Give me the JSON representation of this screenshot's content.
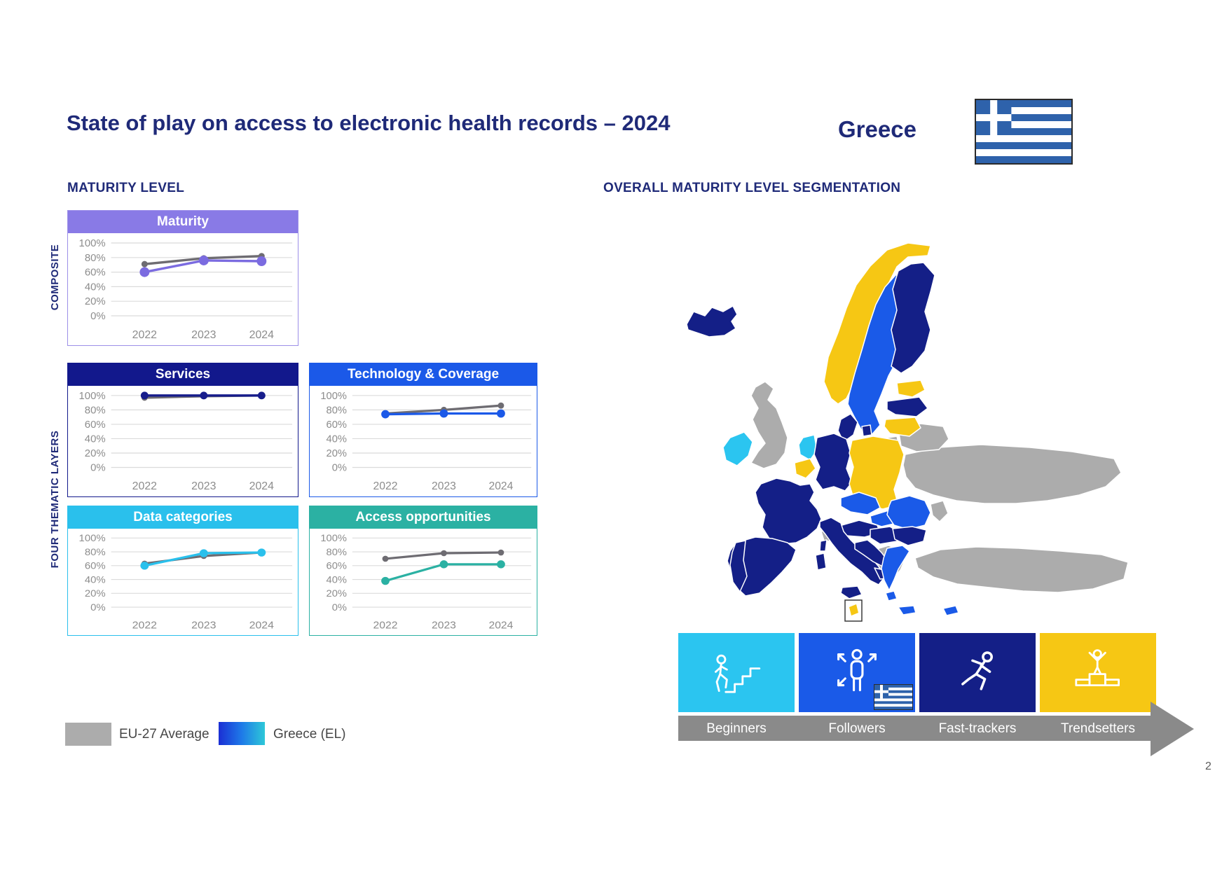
{
  "page": {
    "title": "State of play on access to electronic health records – 2024",
    "country_label": "Greece",
    "page_number": "2"
  },
  "left": {
    "heading": "MATURITY LEVEL",
    "row_labels": {
      "composite": "COMPOSITE",
      "thematic": "FOUR THEMATIC LAYERS"
    },
    "legend": [
      {
        "label": "EU-27 Average",
        "color": "#ACACAC"
      },
      {
        "label": "Greece (EL)",
        "color": "linear-gradient(90deg,#1B2FD4,#1E7AE8,#2EC8D8)"
      }
    ]
  },
  "right": {
    "heading": "OVERALL MATURITY LEVEL SEGMENTATION",
    "segments": [
      {
        "label": "Beginners",
        "color": "#2BC5F0",
        "icon": "person-climbing-stairs-icon"
      },
      {
        "label": "Followers",
        "color": "#1A5AE8",
        "icon": "person-expand-arrows-icon",
        "flag": "greece"
      },
      {
        "label": "Fast-trackers",
        "color": "#141F87",
        "icon": "running-person-icon"
      },
      {
        "label": "Trendsetters",
        "color": "#F6C714",
        "icon": "podium-winner-icon"
      }
    ]
  },
  "chart_data": [
    {
      "type": "line",
      "title": "Maturity",
      "header_color": "#897AE6",
      "border_color": "#9C8FE8",
      "x": [
        "2022",
        "2023",
        "2024"
      ],
      "ylim": [
        0,
        100
      ],
      "yticks": [
        "100%",
        "80%",
        "60%",
        "40%",
        "20%",
        "0%"
      ],
      "series": [
        {
          "name": "EU-27 Average",
          "color": "#6E6C72",
          "marker_r": 4.5,
          "values": [
            71,
            79,
            82
          ]
        },
        {
          "name": "Greece (EL)",
          "color": "#7B6BE0",
          "marker_r": 7,
          "values": [
            60,
            76,
            75
          ]
        }
      ]
    },
    {
      "type": "line",
      "title": "Services",
      "header_color": "#12188C",
      "border_color": "#12188C",
      "x": [
        "2022",
        "2023",
        "2024"
      ],
      "ylim": [
        0,
        100
      ],
      "yticks": [
        "100%",
        "80%",
        "60%",
        "40%",
        "20%",
        "0%"
      ],
      "series": [
        {
          "name": "EU-27 Average",
          "color": "#6E6C72",
          "marker_r": 4.5,
          "values": [
            97,
            99,
            100
          ]
        },
        {
          "name": "Greece (EL)",
          "color": "#171D8C",
          "marker_r": 5.5,
          "values": [
            100,
            100,
            100
          ]
        }
      ]
    },
    {
      "type": "line",
      "title": "Technology & Coverage",
      "header_color": "#1B59E8",
      "border_color": "#1B59E8",
      "x": [
        "2022",
        "2023",
        "2024"
      ],
      "ylim": [
        0,
        100
      ],
      "yticks": [
        "100%",
        "80%",
        "60%",
        "40%",
        "20%",
        "0%"
      ],
      "series": [
        {
          "name": "EU-27 Average",
          "color": "#6E6C72",
          "marker_r": 4.5,
          "values": [
            75,
            80,
            86
          ]
        },
        {
          "name": "Greece (EL)",
          "color": "#1B59E8",
          "marker_r": 6,
          "values": [
            74,
            75,
            75
          ]
        }
      ]
    },
    {
      "type": "line",
      "title": "Data categories",
      "header_color": "#2AC0EC",
      "border_color": "#2AC0EC",
      "x": [
        "2022",
        "2023",
        "2024"
      ],
      "ylim": [
        0,
        100
      ],
      "yticks": [
        "100%",
        "80%",
        "60%",
        "40%",
        "20%",
        "0%"
      ],
      "series": [
        {
          "name": "EU-27 Average",
          "color": "#6E6C72",
          "marker_r": 4.5,
          "values": [
            63,
            74,
            79
          ]
        },
        {
          "name": "Greece (EL)",
          "color": "#2AC0EC",
          "marker_r": 6,
          "values": [
            60,
            78,
            79
          ]
        }
      ]
    },
    {
      "type": "line",
      "title": "Access opportunities",
      "header_color": "#2BB1A3",
      "border_color": "#2BB1A3",
      "x": [
        "2022",
        "2023",
        "2024"
      ],
      "ylim": [
        0,
        100
      ],
      "yticks": [
        "100%",
        "80%",
        "60%",
        "40%",
        "20%",
        "0%"
      ],
      "series": [
        {
          "name": "EU-27 Average",
          "color": "#6E6C72",
          "marker_r": 4.5,
          "values": [
            70,
            78,
            79
          ]
        },
        {
          "name": "Greece (EL)",
          "color": "#2BB1A3",
          "marker_r": 6,
          "values": [
            38,
            62,
            62
          ]
        }
      ]
    }
  ],
  "map": {
    "category_colors": {
      "beginners": "#2BC5F0",
      "followers": "#1A5AE8",
      "fast_trackers": "#141F87",
      "trendsetters": "#F6C714",
      "non_eu": "#ACACAC"
    },
    "countries": {
      "iceland": "fast_trackers",
      "norway": "trendsetters",
      "sweden": "followers",
      "finland": "fast_trackers",
      "estonia": "trendsetters",
      "latvia": "fast_trackers",
      "lithuania": "trendsetters",
      "denmark": "fast_trackers",
      "united_kingdom": "non_eu",
      "ireland": "beginners",
      "netherlands": "beginners",
      "belgium": "trendsetters",
      "germany": "fast_trackers",
      "poland": "trendsetters",
      "czechia": "followers",
      "slovakia": "followers",
      "austria": "fast_trackers",
      "hungary": "fast_trackers",
      "switzerland": "non_eu",
      "france": "fast_trackers",
      "spain": "fast_trackers",
      "portugal": "fast_trackers",
      "italy": "fast_trackers",
      "croatia": "fast_trackers",
      "romania": "followers",
      "bulgaria": "fast_trackers",
      "greece": "followers",
      "turkey": "non_eu",
      "ukraine": "non_eu",
      "belarus": "non_eu",
      "moldova": "non_eu",
      "kaliningrad": "non_eu",
      "western_balkans": "non_eu",
      "cyprus": "followers",
      "malta": "trendsetters"
    }
  }
}
